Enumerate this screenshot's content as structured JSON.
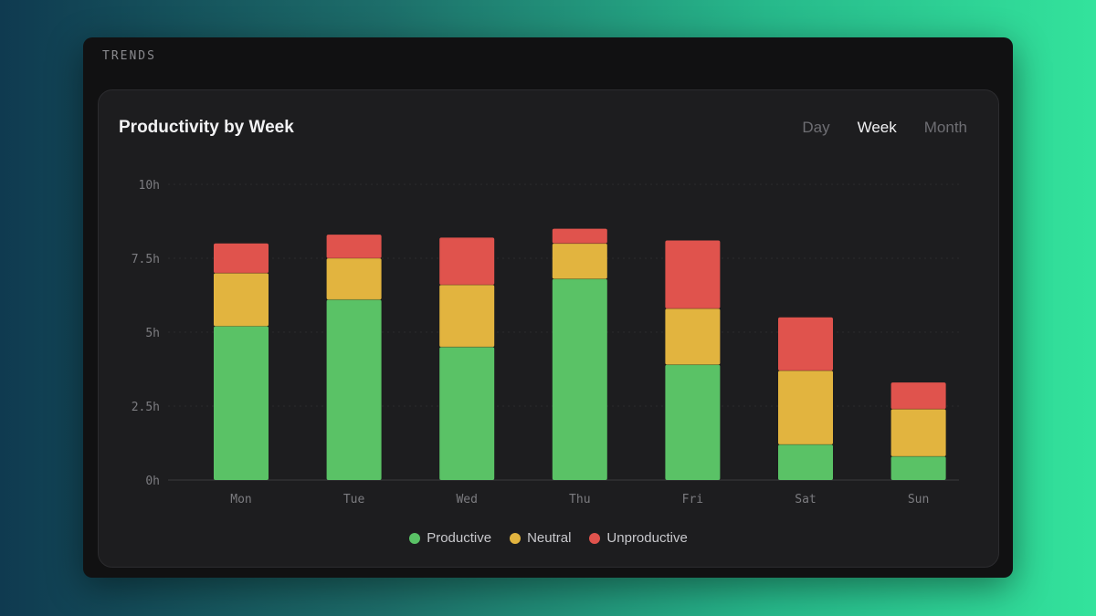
{
  "section_label": "TRENDS",
  "card": {
    "title": "Productivity by Week",
    "tabs": [
      {
        "label": "Day",
        "active": false
      },
      {
        "label": "Week",
        "active": true
      },
      {
        "label": "Month",
        "active": false
      }
    ]
  },
  "chart_data": {
    "type": "bar",
    "stacked": true,
    "title": "Productivity by Week",
    "categories": [
      "Mon",
      "Tue",
      "Wed",
      "Thu",
      "Fri",
      "Sat",
      "Sun"
    ],
    "series": [
      {
        "name": "Productive",
        "color": "#5ac266",
        "values": [
          5.2,
          6.1,
          4.5,
          6.8,
          3.9,
          1.2,
          0.8
        ]
      },
      {
        "name": "Neutral",
        "color": "#e2b43f",
        "values": [
          1.8,
          1.4,
          2.1,
          1.2,
          1.9,
          2.5,
          1.6
        ]
      },
      {
        "name": "Unproductive",
        "color": "#e0534d",
        "values": [
          1.0,
          0.8,
          1.6,
          0.5,
          2.3,
          1.8,
          0.9
        ]
      }
    ],
    "yticks": [
      {
        "value": 0,
        "label": "0h"
      },
      {
        "value": 2.5,
        "label": "2.5h"
      },
      {
        "value": 5,
        "label": "5h"
      },
      {
        "value": 7.5,
        "label": "7.5h"
      },
      {
        "value": 10,
        "label": "10h"
      }
    ],
    "ylim": [
      0,
      10
    ],
    "grid": true,
    "legend_position": "bottom-center"
  }
}
